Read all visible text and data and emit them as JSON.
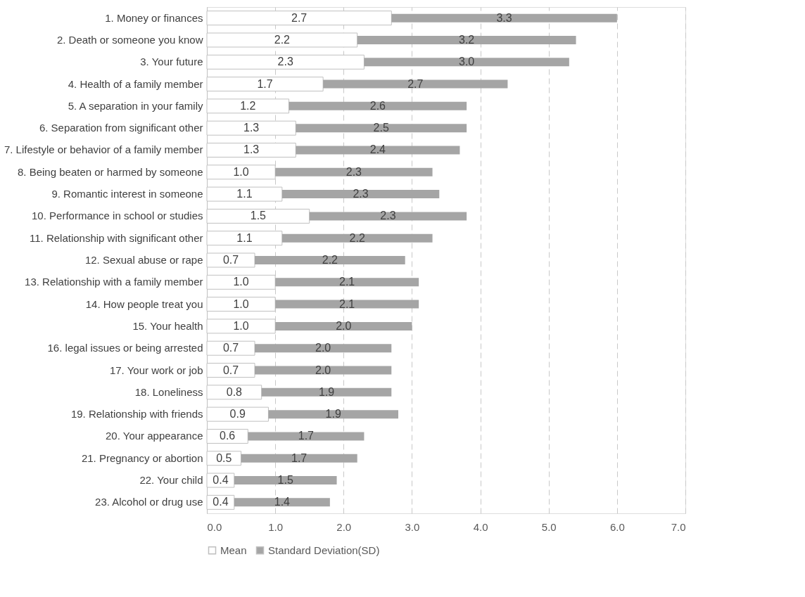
{
  "chart_data": {
    "type": "bar",
    "orientation": "horizontal",
    "stacked": true,
    "categories": [
      "1. Money or finances",
      "2. Death or someone you know",
      "3. Your future",
      "4. Health of a family member",
      "5. A separation in your family",
      "6. Separation from significant other",
      "7. Lifestyle or behavior of a family member",
      "8. Being beaten or harmed by someone",
      "9. Romantic interest in someone",
      "10. Performance in school or studies",
      "11. Relationship with significant other",
      "12. Sexual abuse or rape",
      "13. Relationship with a family member",
      "14. How people treat you",
      "15. Your health",
      "16. legal issues or being arrested",
      "17. Your work or job",
      "18. Loneliness",
      "19. Relationship with friends",
      "20. Your appearance",
      "21. Pregnancy or abortion",
      "22. Your child",
      "23. Alcohol or drug use"
    ],
    "series": [
      {
        "name": "Mean",
        "color": "#ffffff",
        "values": [
          2.7,
          2.2,
          2.3,
          1.7,
          1.2,
          1.3,
          1.3,
          1.0,
          1.1,
          1.5,
          1.1,
          0.7,
          1.0,
          1.0,
          1.0,
          0.7,
          0.7,
          0.8,
          0.9,
          0.6,
          0.5,
          0.4,
          0.4
        ],
        "value_labels": [
          "2.7",
          "2.2",
          "2.3",
          "1.7",
          "1.2",
          "1.3",
          "1.3",
          "1.0",
          "1.1",
          "1.5",
          "1.1",
          "0.7",
          "1.0",
          "1.0",
          "1.0",
          "0.7",
          "0.7",
          "0.8",
          "0.9",
          "0.6",
          "0.5",
          "0.4",
          "0.4"
        ]
      },
      {
        "name": "Standard Deviation(SD)",
        "color": "#a5a5a5",
        "values": [
          3.3,
          3.2,
          3.0,
          2.7,
          2.6,
          2.5,
          2.4,
          2.3,
          2.3,
          2.3,
          2.2,
          2.2,
          2.1,
          2.1,
          2.0,
          2.0,
          2.0,
          1.9,
          1.9,
          1.7,
          1.7,
          1.5,
          1.4
        ],
        "value_labels": [
          "3.3",
          "3.2",
          "3.0",
          "2.7",
          "2.6",
          "2.5",
          "2.4",
          "2.3",
          "2.3",
          "2.3",
          "2.2",
          "2.2",
          "2.1",
          "2.1",
          "2.0",
          "2.0",
          "2.0",
          "1.9",
          "1.9",
          "1.7",
          "1.7",
          "1.5",
          "1.4"
        ]
      }
    ],
    "xlim": [
      0,
      7
    ],
    "xticks": [
      {
        "value": 0,
        "label": "0.0"
      },
      {
        "value": 1,
        "label": "1.0"
      },
      {
        "value": 2,
        "label": "2.0"
      },
      {
        "value": 3,
        "label": "3.0"
      },
      {
        "value": 4,
        "label": "4.0"
      },
      {
        "value": 5,
        "label": "5.0"
      },
      {
        "value": 6,
        "label": "6.0"
      },
      {
        "value": 7,
        "label": "7.0"
      }
    ],
    "grid": "x",
    "legend": "bottom"
  }
}
